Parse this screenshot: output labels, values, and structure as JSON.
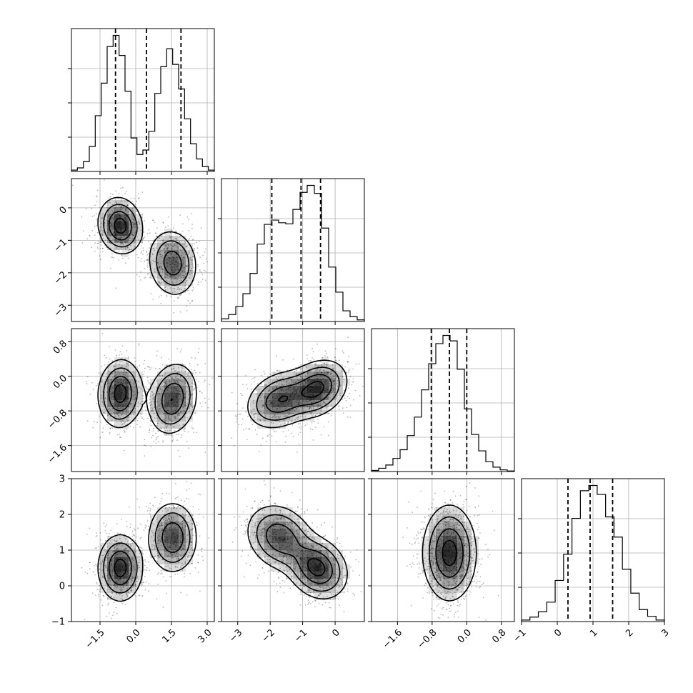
{
  "chart_data": {
    "type": "corner",
    "title": "",
    "subtitle": "",
    "grid": true,
    "parameters": [
      {
        "xticks": [
          -1.5,
          0.0,
          1.5,
          3.0
        ],
        "xtick_labels": [
          "−1.5",
          "0.0",
          "1.5",
          "3.0"
        ],
        "range": [
          -2.7,
          3.3
        ]
      },
      {
        "xticks": [
          -3,
          -2,
          -1,
          0
        ],
        "xtick_labels": [
          "−3",
          "−2",
          "−1",
          "0"
        ],
        "yticks": [
          0,
          -1,
          -2,
          -3
        ],
        "ytick_labels": [
          "0",
          "−1",
          "−2",
          "−3"
        ],
        "range": [
          -3.5,
          0.9
        ]
      },
      {
        "xticks": [
          -1.6,
          -0.8,
          0.0,
          0.8
        ],
        "xtick_labels": [
          "−1.6",
          "−0.8",
          "0.0",
          "0.8"
        ],
        "yticks": [
          0.8,
          0.0,
          -0.8,
          -1.6
        ],
        "ytick_labels": [
          "0.8",
          "0.0",
          "−0.8",
          "−1.6"
        ],
        "range": [
          -2.2,
          1.1
        ]
      },
      {
        "xticks": [
          -1,
          0,
          1,
          2,
          3
        ],
        "xtick_labels": [
          "−1",
          "0",
          "1",
          "2",
          "3"
        ],
        "yticks": [
          -1,
          0,
          1,
          2,
          3
        ],
        "ytick_labels": [
          "−1",
          "0",
          "1",
          "2",
          "3"
        ],
        "range": [
          -1.0,
          3.0
        ]
      }
    ],
    "marginal_histograms": [
      {
        "param": 0,
        "quantiles": [
          -0.85,
          0.45,
          1.9
        ],
        "bin_edges_range": [
          -2.7,
          3.3
        ],
        "counts": [
          0.3,
          0.8,
          2.2,
          5.6,
          12.5,
          19.8,
          28.0,
          30.5,
          26.0,
          18.0,
          7.5,
          3.8,
          4.8,
          9.0,
          17.5,
          23.5,
          27.5,
          24.0,
          18.5,
          11.8,
          6.2,
          2.8,
          1.1,
          0.3
        ]
      },
      {
        "param": 1,
        "quantiles": [
          -1.95,
          -1.05,
          -0.45
        ],
        "bin_edges_range": [
          -3.5,
          0.9
        ],
        "counts": [
          0.5,
          1.3,
          2.8,
          5.2,
          9.0,
          14.5,
          18.2,
          19.0,
          18.5,
          18.3,
          21.0,
          24.2,
          25.5,
          24.0,
          17.5,
          10.2,
          5.5,
          2.0,
          0.9,
          0.3
        ]
      },
      {
        "param": 2,
        "quantiles": [
          -0.82,
          -0.4,
          0.0
        ],
        "bin_edges_range": [
          -2.2,
          1.1
        ],
        "counts": [
          0.2,
          0.6,
          1.2,
          2.4,
          4.0,
          6.6,
          10.0,
          15.0,
          19.8,
          23.5,
          25.0,
          24.0,
          18.8,
          11.5,
          6.8,
          3.8,
          1.8,
          0.8,
          0.3,
          0.1
        ]
      },
      {
        "param": 3,
        "quantiles": [
          0.3,
          0.92,
          1.55
        ],
        "bin_edges_range": [
          -1.0,
          3.0
        ],
        "counts": [
          0.2,
          0.6,
          1.3,
          2.6,
          5.5,
          9.0,
          13.8,
          17.5,
          18.2,
          17.0,
          14.0,
          11.3,
          7.0,
          3.8,
          1.6,
          0.7,
          0.2
        ]
      }
    ],
    "joint_distributions": [
      {
        "x_param": 0,
        "y_param": 1,
        "components": [
          {
            "mean": [
              -0.65,
              -0.55
            ],
            "sd": [
              0.45,
              0.42
            ],
            "corr": -0.1,
            "weight": 0.5
          },
          {
            "mean": [
              1.55,
              -1.7
            ],
            "sd": [
              0.5,
              0.5
            ],
            "corr": -0.1,
            "weight": 0.5
          }
        ]
      },
      {
        "x_param": 0,
        "y_param": 2,
        "components": [
          {
            "mean": [
              -0.65,
              -0.4
            ],
            "sd": [
              0.45,
              0.38
            ],
            "corr": 0.05,
            "weight": 0.5
          },
          {
            "mean": [
              1.55,
              -0.52
            ],
            "sd": [
              0.5,
              0.4
            ],
            "corr": 0.15,
            "weight": 0.5
          }
        ]
      },
      {
        "x_param": 1,
        "y_param": 2,
        "components": [
          {
            "mean": [
              -0.55,
              -0.28
            ],
            "sd": [
              0.45,
              0.32
            ],
            "corr": 0.25,
            "weight": 0.5
          },
          {
            "mean": [
              -1.7,
              -0.55
            ],
            "sd": [
              0.5,
              0.32
            ],
            "corr": 0.25,
            "weight": 0.5
          }
        ]
      },
      {
        "x_param": 0,
        "y_param": 3,
        "components": [
          {
            "mean": [
              -0.65,
              0.5
            ],
            "sd": [
              0.45,
              0.45
            ],
            "corr": 0.0,
            "weight": 0.5
          },
          {
            "mean": [
              1.55,
              1.35
            ],
            "sd": [
              0.5,
              0.48
            ],
            "corr": 0.0,
            "weight": 0.5
          }
        ]
      },
      {
        "x_param": 1,
        "y_param": 3,
        "components": [
          {
            "mean": [
              -0.55,
              0.5
            ],
            "sd": [
              0.45,
              0.42
            ],
            "corr": -0.2,
            "weight": 0.5
          },
          {
            "mean": [
              -1.7,
              1.35
            ],
            "sd": [
              0.5,
              0.45
            ],
            "corr": -0.2,
            "weight": 0.5
          }
        ]
      },
      {
        "x_param": 2,
        "y_param": 3,
        "components": [
          {
            "mean": [
              -0.4,
              0.92
            ],
            "sd": [
              0.3,
              0.65
            ],
            "corr": 0.0,
            "weight": 1.0
          }
        ]
      }
    ]
  }
}
